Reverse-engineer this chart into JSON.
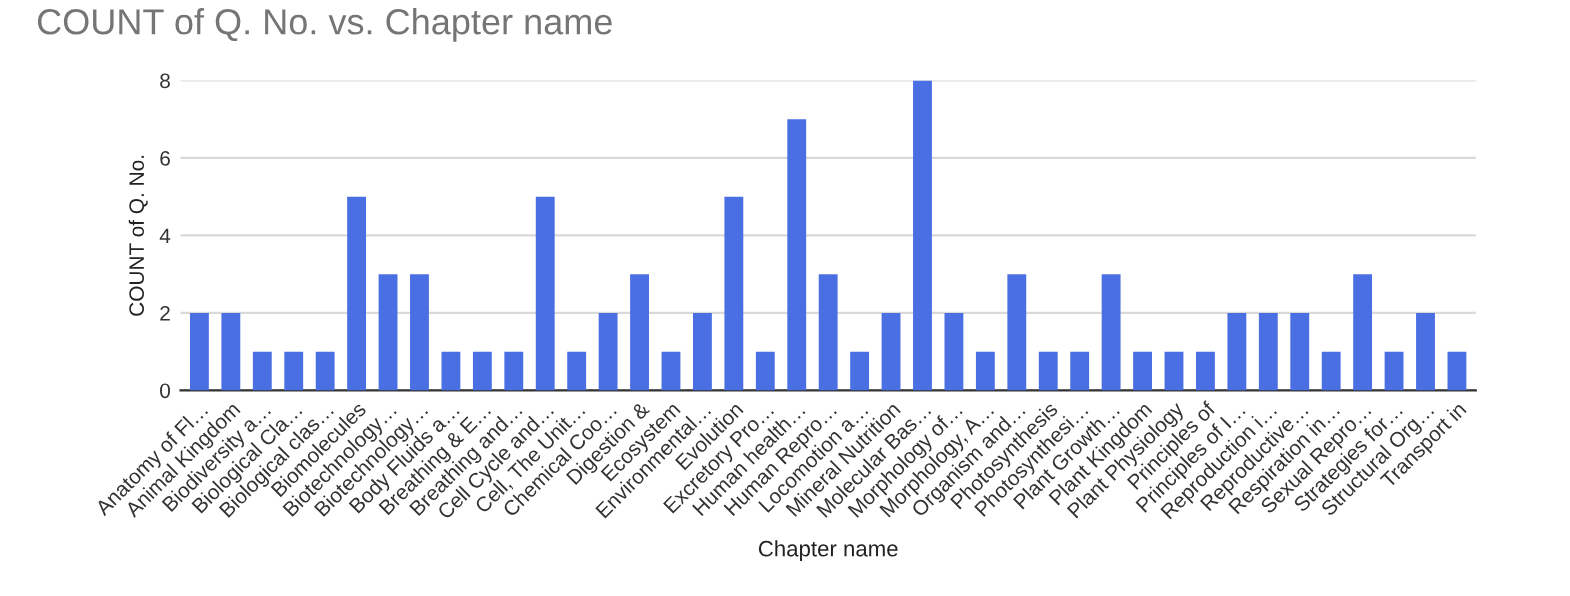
{
  "chart_data": {
    "type": "bar",
    "title": "COUNT of Q. No. vs. Chapter name",
    "xlabel": "Chapter name",
    "ylabel": "COUNT of Q. No.",
    "categories": [
      "Anatomy of Fl…",
      "Animal Kingdom",
      "Biodiversity a…",
      "Biological Cla…",
      "Biological clas…",
      "Biomolecules",
      "Biotechnology…",
      "Biotechnology…",
      "Body Fluids a…",
      "Breathing & E…",
      "Breathing and…",
      "Cell Cycle and…",
      "Cell, The Unit…",
      "Chemical Coo…",
      "Digestion &",
      "Ecosystem",
      "Environmental…",
      "Evolution",
      "Excretory Pro…",
      "Human health…",
      "Human Repro…",
      "Locomotion a…",
      "Mineral Nutrition",
      "Molecular Bas…",
      "Morphology of…",
      "Morphology, A…",
      "Organism and…",
      "Photosynthesis",
      "Photosynthesi…",
      "Plant Growth…",
      "Plant Kingdom",
      "Plant Physiology",
      "Principles of",
      "Principles of I…",
      "Reproduction i…",
      "Reproductive…",
      "Respiration in…",
      "Sexual Repro…",
      "Strategies for…",
      "Structural Org…",
      "Transport in"
    ],
    "values": [
      2,
      2,
      1,
      1,
      1,
      5,
      3,
      3,
      1,
      1,
      1,
      5,
      1,
      2,
      3,
      1,
      2,
      5,
      1,
      7,
      3,
      1,
      2,
      8,
      2,
      1,
      3,
      1,
      1,
      3,
      1,
      1,
      1,
      2,
      2,
      2,
      1,
      3,
      1,
      2,
      1
    ],
    "color": "#4a6fe3",
    "ylim": [
      0,
      8
    ],
    "yticks": [
      0,
      2,
      4,
      6,
      8
    ],
    "grid": "y"
  }
}
